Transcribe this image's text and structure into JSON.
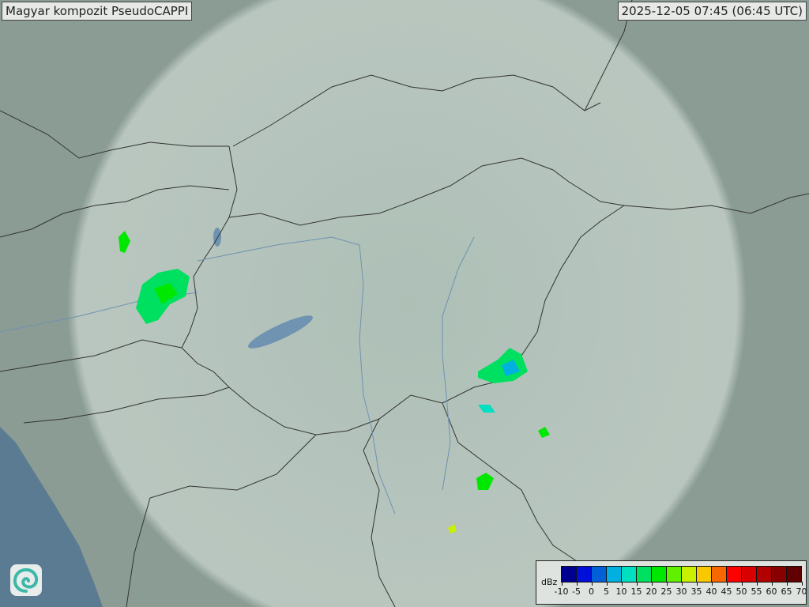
{
  "header": {
    "title": "Magyar kompozit  PseudoCAPPI",
    "timestamp": "2025-12-05 07:45 (06:45 UTC)"
  },
  "map": {
    "terrain_color": "#8a9c93",
    "radar_coverage_color": "#c9d6cf",
    "sea_color": "#5b7b92",
    "border_color": "#333333"
  },
  "legend": {
    "unit": "dBz",
    "labels": [
      "-10",
      "-5",
      "0",
      "5",
      "10",
      "15",
      "20",
      "25",
      "30",
      "35",
      "40",
      "45",
      "50",
      "55",
      "60",
      "65",
      "70"
    ],
    "colors": [
      "#000090",
      "#0010d8",
      "#0060d8",
      "#00b0e0",
      "#00e0c0",
      "#00e060",
      "#00e800",
      "#60f000",
      "#c8f000",
      "#f8c800",
      "#f86800",
      "#ff0000",
      "#d80000",
      "#b00000",
      "#880000",
      "#600000"
    ]
  },
  "logo": {
    "icon": "swirl-logo-icon"
  }
}
